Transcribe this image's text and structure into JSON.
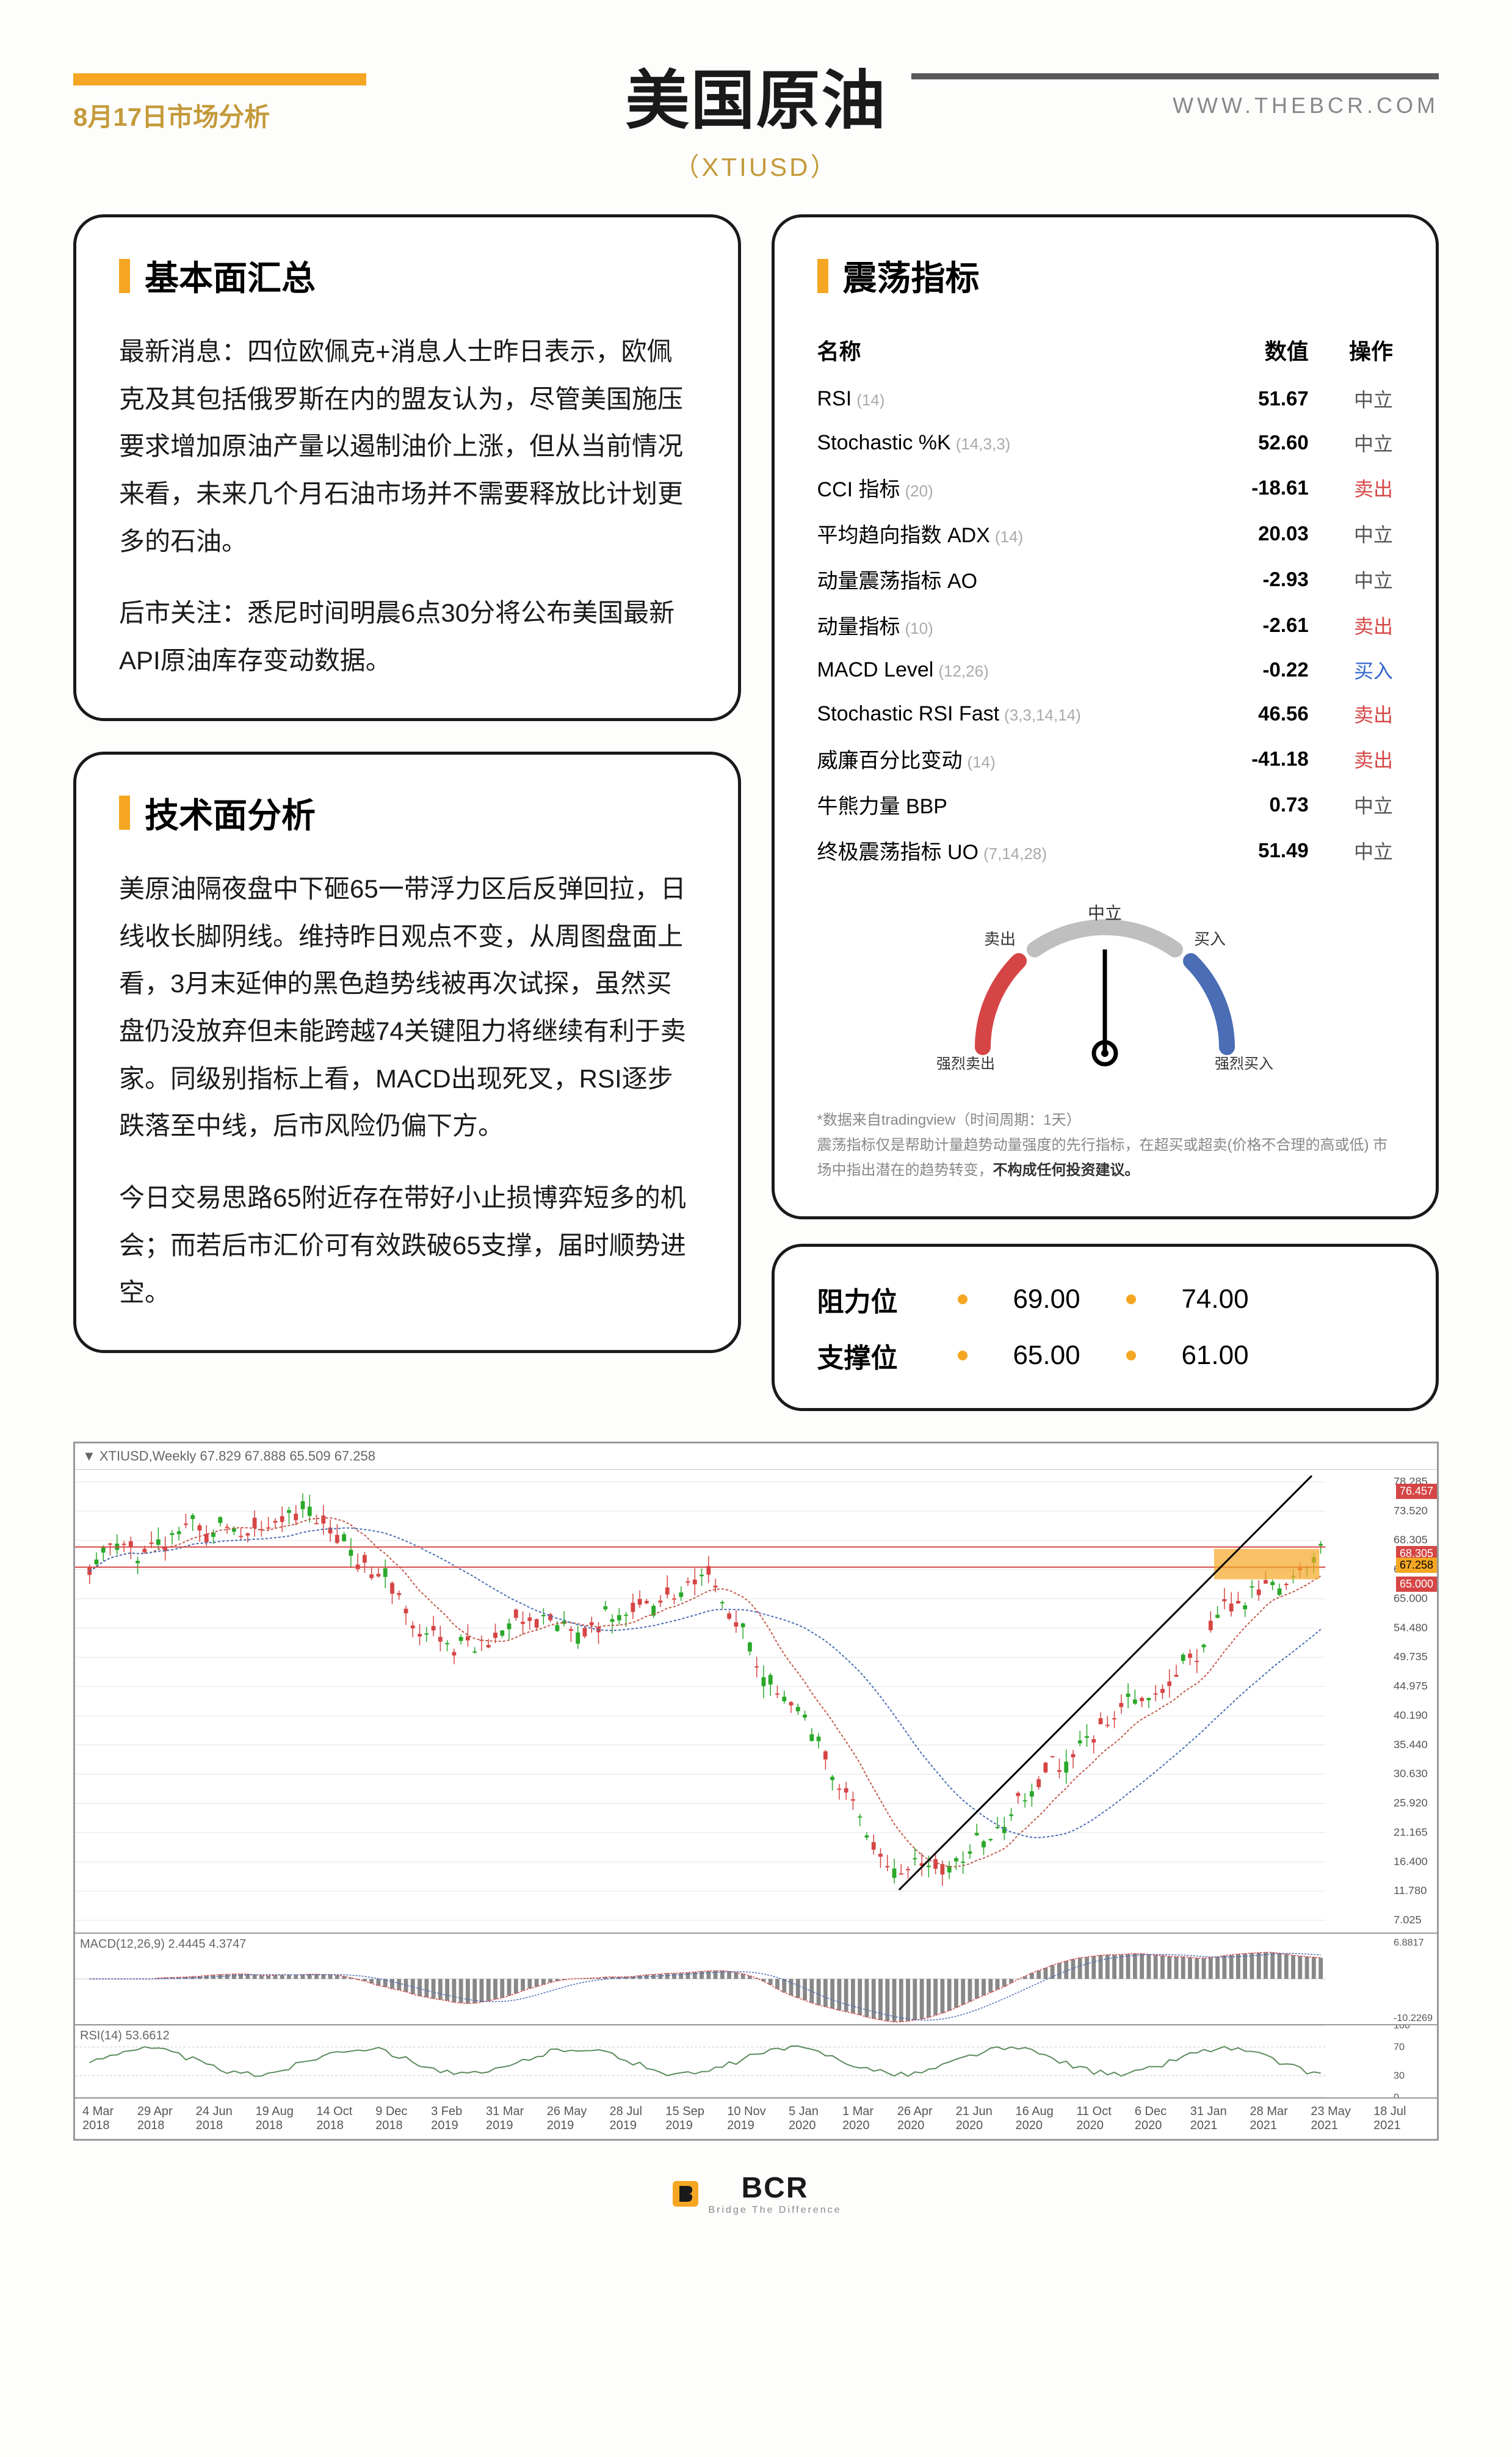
{
  "header": {
    "date": "8月17日市场分析",
    "title": "美国原油",
    "subtitle": "（XTIUSD）",
    "website": "WWW.THEBCR.COM"
  },
  "fundamentals": {
    "title": "基本面汇总",
    "p1": "最新消息：四位欧佩克+消息人士昨日表示，欧佩克及其包括俄罗斯在内的盟友认为，尽管美国施压要求增加原油产量以遏制油价上涨，但从当前情况来看，未来几个月石油市场并不需要释放比计划更多的石油。",
    "p2": "后市关注：悉尼时间明晨6点30分将公布美国最新API原油库存变动数据。"
  },
  "technical": {
    "title": "技术面分析",
    "p1": "美原油隔夜盘中下砸65一带浮力区后反弹回拉，日线收长脚阴线。维持昨日观点不变，从周图盘面上看，3月末延伸的黑色趋势线被再次试探，虽然买盘仍没放弃但未能跨越74关键阻力将继续有利于卖家。同级别指标上看，MACD出现死叉，RSI逐步跌落至中线，后市风险仍偏下方。",
    "p2": "今日交易思路65附近存在带好小止损博弈短多的机会；而若后市汇价可有效跌破65支撑，届时顺势进空。"
  },
  "oscillators": {
    "title": "震荡指标",
    "headers": {
      "name": "名称",
      "value": "数值",
      "action": "操作"
    },
    "rows": [
      {
        "name": "RSI",
        "param": "(14)",
        "value": "51.67",
        "action": "中立",
        "action_class": "action-neutral"
      },
      {
        "name": "Stochastic %K",
        "param": "(14,3,3)",
        "value": "52.60",
        "action": "中立",
        "action_class": "action-neutral"
      },
      {
        "name": "CCI 指标",
        "param": "(20)",
        "value": "-18.61",
        "action": "卖出",
        "action_class": "action-sell"
      },
      {
        "name": "平均趋向指数 ADX",
        "param": "(14)",
        "value": "20.03",
        "action": "中立",
        "action_class": "action-neutral"
      },
      {
        "name": "动量震荡指标 AO",
        "param": "",
        "value": "-2.93",
        "action": "中立",
        "action_class": "action-neutral"
      },
      {
        "name": "动量指标",
        "param": "(10)",
        "value": "-2.61",
        "action": "卖出",
        "action_class": "action-sell"
      },
      {
        "name": "MACD Level",
        "param": "(12,26)",
        "value": "-0.22",
        "action": "买入",
        "action_class": "action-buy"
      },
      {
        "name": "Stochastic RSI Fast",
        "param": "(3,3,14,14)",
        "value": "46.56",
        "action": "卖出",
        "action_class": "action-sell"
      },
      {
        "name": "威廉百分比变动",
        "param": "(14)",
        "value": "-41.18",
        "action": "卖出",
        "action_class": "action-sell"
      },
      {
        "name": "牛熊力量 BBP",
        "param": "",
        "value": "0.73",
        "action": "中立",
        "action_class": "action-neutral"
      },
      {
        "name": "终极震荡指标 UO",
        "param": "(7,14,28)",
        "value": "51.49",
        "action": "中立",
        "action_class": "action-neutral"
      }
    ],
    "gauge": {
      "labels": {
        "strong_sell": "强烈卖出",
        "sell": "卖出",
        "neutral": "中立",
        "buy": "买入",
        "strong_buy": "强烈买入"
      },
      "needle_angle": 90,
      "colors": {
        "sell": "#d64545",
        "neutral": "#bfbfbf",
        "buy": "#4a6db5"
      }
    },
    "disclaimer_line1": "*数据来自tradingview（时间周期：1天）",
    "disclaimer_line2": "震荡指标仅是帮助计量趋势动量强度的先行指标，在超买或超卖(价格不合理的高或低) 市场中指出潜在的趋势转变，",
    "disclaimer_bold": "不构成任何投资建议。"
  },
  "levels": {
    "resistance": {
      "label": "阻力位",
      "v1": "69.00",
      "v2": "74.00"
    },
    "support": {
      "label": "支撑位",
      "v1": "65.00",
      "v2": "61.00"
    }
  },
  "chart": {
    "header_text": "▼ XTIUSD,Weekly  67.829 67.888 65.509 67.258",
    "price_axis": [
      "78.285",
      "73.520",
      "68.305",
      "67.258",
      "65.000",
      "54.480",
      "49.735",
      "44.975",
      "40.190",
      "35.440",
      "30.630",
      "25.920",
      "21.165",
      "16.400",
      "11.780",
      "7.025"
    ],
    "price_highlights": [
      {
        "value": "76.457",
        "color": "red",
        "top_pct": 3
      },
      {
        "value": "68.305",
        "color": "red",
        "top_pct": 16.5
      },
      {
        "value": "67.258",
        "color": "orange",
        "top_pct": 19
      },
      {
        "value": "65.000",
        "color": "red",
        "top_pct": 23
      }
    ],
    "macd_label": "MACD(12,26,9) 2.4445 4.3747",
    "macd_axis_top": "6.8817",
    "macd_axis_bot": "-10.2269",
    "rsi_label": "RSI(14) 53.6612",
    "rsi_axis": [
      "100",
      "70",
      "30",
      "0"
    ],
    "dates": [
      "4 Mar 2018",
      "29 Apr 2018",
      "24 Jun 2018",
      "19 Aug 2018",
      "14 Oct 2018",
      "9 Dec 2018",
      "3 Feb 2019",
      "31 Mar 2019",
      "26 May 2019",
      "28 Jul 2019",
      "15 Sep 2019",
      "10 Nov 2019",
      "5 Jan 2020",
      "1 Mar 2020",
      "26 Apr 2020",
      "21 Jun 2020",
      "16 Aug 2020",
      "11 Oct 2020",
      "6 Dec 2020",
      "31 Jan 2021",
      "28 Mar 2021",
      "23 May 2021",
      "18 Jul 2021"
    ],
    "candles_seed": 180,
    "colors": {
      "up": "#2aa82a",
      "down": "#d64545",
      "ma1": "#c05a4a",
      "ma2": "#4a6db5",
      "trend": "#000000",
      "grid": "#e5e5e5"
    }
  },
  "footer": {
    "brand": "BCR",
    "tagline": "Bridge The Difference"
  }
}
